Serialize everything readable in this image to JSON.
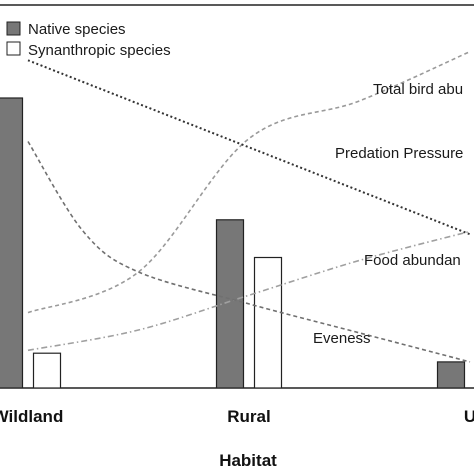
{
  "chart_data": {
    "type": "bar",
    "title": "",
    "xlabel": "Habitat",
    "ylabel": "",
    "categories": [
      "Wildland",
      "Rural",
      "Urban"
    ],
    "category_labels_shown": [
      "Wildland",
      "Rural",
      "U"
    ],
    "ylim": [
      0,
      100
    ],
    "grid": false,
    "legend_position": "top-left",
    "series": [
      {
        "name": "Native species",
        "color": "#777777",
        "values": [
          100,
          58,
          9
        ]
      },
      {
        "name": "Synanthropic species",
        "color": "#ffffff",
        "values": [
          12,
          45,
          0
        ]
      }
    ],
    "trend_lines": [
      {
        "label": "Total bird abu",
        "style": "dashed",
        "color": "#9a9a9a",
        "points": [
          [
            0,
            26
          ],
          [
            0.5,
            40
          ],
          [
            1,
            86
          ],
          [
            1.5,
            99
          ],
          [
            2,
            116
          ]
        ]
      },
      {
        "label": "Predation Pressure",
        "style": "dotted",
        "color": "#333333",
        "points": [
          [
            0,
            113
          ],
          [
            0.5,
            98
          ],
          [
            1,
            83
          ],
          [
            1.5,
            68
          ],
          [
            2,
            53
          ]
        ]
      },
      {
        "label": "Food abundan",
        "style": "dash-dot",
        "color": "#a0a0a0",
        "points": [
          [
            0,
            13
          ],
          [
            0.5,
            20
          ],
          [
            1,
            32
          ],
          [
            1.5,
            44
          ],
          [
            2,
            54
          ]
        ]
      },
      {
        "label": "Eveness",
        "style": "dashed",
        "color": "#707070",
        "points": [
          [
            0,
            85
          ],
          [
            0.25,
            54
          ],
          [
            0.5,
            40
          ],
          [
            1,
            29
          ],
          [
            1.5,
            19
          ],
          [
            2,
            9
          ]
        ]
      }
    ]
  }
}
